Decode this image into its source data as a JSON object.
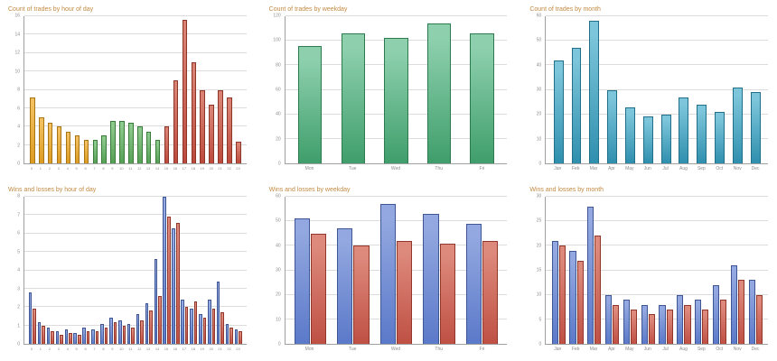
{
  "page": {
    "background": "#ffffff"
  },
  "chart_data": [
    {
      "id": "trades-by-hour",
      "type": "bar",
      "title": "Count of trades by hour of day",
      "categories": [
        "0",
        "1",
        "2",
        "3",
        "4",
        "5",
        "6",
        "7",
        "8",
        "9",
        "10",
        "11",
        "12",
        "13",
        "14",
        "15",
        "16",
        "17",
        "18",
        "19",
        "20",
        "21",
        "22",
        "23"
      ],
      "ylim": [
        0,
        16
      ],
      "ytick_step": 2,
      "grid": true,
      "legend": "none",
      "palette": {
        "orange": {
          "base": "#dd9b21",
          "light": "#f2c05e",
          "border": "#a87415"
        },
        "green": {
          "base": "#55a055",
          "light": "#8cc98c",
          "border": "#3c7a3c"
        },
        "red": {
          "base": "#bc4a3c",
          "light": "#d98273",
          "border": "#8e3529"
        }
      },
      "series": [
        {
          "name": "Trades",
          "values": [
            7.2,
            5,
            4.4,
            4,
            3.4,
            3,
            2.6,
            2.6,
            3,
            4.6,
            4.6,
            4.4,
            4,
            3.4,
            2.6,
            4,
            9,
            15.6,
            11,
            8,
            6.4,
            8,
            7.2,
            2.4
          ],
          "bar_colors": [
            "orange",
            "orange",
            "orange",
            "orange",
            "orange",
            "orange",
            "orange",
            "green",
            "green",
            "green",
            "green",
            "green",
            "green",
            "green",
            "green",
            "red",
            "red",
            "red",
            "red",
            "red",
            "red",
            "red",
            "red",
            "red"
          ]
        }
      ]
    },
    {
      "id": "trades-by-weekday",
      "type": "bar",
      "title": "Count of trades by weekday",
      "categories": [
        "Mon",
        "Tue",
        "Wed",
        "Thu",
        "Fri"
      ],
      "ylim": [
        0,
        120
      ],
      "ytick_step": 20,
      "grid": true,
      "legend": "none",
      "series": [
        {
          "name": "Trades",
          "values": [
            96,
            106,
            102,
            114,
            106
          ],
          "color": {
            "base": "#3f9e6b",
            "light": "#8ed0ae",
            "border": "#2d7a4f"
          }
        }
      ]
    },
    {
      "id": "trades-by-month",
      "type": "bar",
      "title": "Count of trades by month",
      "categories": [
        "Jan",
        "Feb",
        "Mar",
        "Apr",
        "May",
        "Jun",
        "Jul",
        "Aug",
        "Sep",
        "Oct",
        "Nov",
        "Dec"
      ],
      "ylim": [
        0,
        60
      ],
      "ytick_step": 10,
      "grid": true,
      "legend": "none",
      "series": [
        {
          "name": "Trades",
          "values": [
            42,
            47,
            58,
            30,
            23,
            19,
            20,
            27,
            24,
            21,
            31,
            29
          ],
          "color": {
            "base": "#2f8fae",
            "light": "#7cc5da",
            "border": "#20708a"
          }
        }
      ]
    },
    {
      "id": "wins-losses-by-hour",
      "type": "bar",
      "title": "Wins and losses by hour of day",
      "categories": [
        "0",
        "1",
        "2",
        "3",
        "4",
        "5",
        "6",
        "7",
        "8",
        "9",
        "10",
        "11",
        "12",
        "13",
        "14",
        "15",
        "16",
        "17",
        "18",
        "19",
        "20",
        "21",
        "22",
        "23"
      ],
      "ylim": [
        0,
        8
      ],
      "ytick_step": 1,
      "grid": true,
      "legend": "none",
      "series": [
        {
          "name": "Wins",
          "values": [
            2.8,
            1.2,
            0.9,
            0.7,
            0.8,
            0.6,
            0.9,
            0.8,
            1.1,
            1.4,
            1.3,
            1.1,
            1.6,
            2.2,
            4.6,
            8,
            6.3,
            2.4,
            1.9,
            1.6,
            2.4,
            3.4,
            1.1,
            0.8
          ],
          "color": {
            "base": "#5b79c9",
            "light": "#93a8e0",
            "border": "#3f5694"
          }
        },
        {
          "name": "Losses",
          "values": [
            1.9,
            1,
            0.7,
            0.5,
            0.6,
            0.5,
            0.7,
            0.7,
            0.9,
            1.2,
            1,
            0.9,
            1.3,
            1.8,
            2.6,
            6.9,
            6.6,
            2,
            2.3,
            1.4,
            1.9,
            1.7,
            0.9,
            0.7
          ],
          "color": {
            "base": "#bf5044",
            "light": "#dd8a7c",
            "border": "#93372c"
          }
        }
      ]
    },
    {
      "id": "wins-losses-by-weekday",
      "type": "bar",
      "title": "Wins and losses by weekday",
      "categories": [
        "Mon",
        "Tue",
        "Wed",
        "Thu",
        "Fri"
      ],
      "ylim": [
        0,
        60
      ],
      "ytick_step": 10,
      "grid": true,
      "legend": "none",
      "series": [
        {
          "name": "Wins",
          "values": [
            51,
            47,
            57,
            53,
            49
          ],
          "color": {
            "base": "#5b79c9",
            "light": "#93a8e0",
            "border": "#3f5694"
          }
        },
        {
          "name": "Losses",
          "values": [
            45,
            40,
            42,
            41,
            42
          ],
          "color": {
            "base": "#bf5044",
            "light": "#dd8a7c",
            "border": "#93372c"
          }
        }
      ]
    },
    {
      "id": "wins-losses-by-month",
      "type": "bar",
      "title": "Wins and losses by month",
      "categories": [
        "Jan",
        "Feb",
        "Mar",
        "Apr",
        "May",
        "Jun",
        "Jul",
        "Aug",
        "Sep",
        "Oct",
        "Nov",
        "Dec"
      ],
      "ylim": [
        0,
        30
      ],
      "ytick_step": 5,
      "grid": true,
      "legend": "none",
      "series": [
        {
          "name": "Wins",
          "values": [
            21,
            19,
            28,
            10,
            9,
            8,
            8,
            10,
            9,
            12,
            16,
            13
          ],
          "color": {
            "base": "#5b79c9",
            "light": "#93a8e0",
            "border": "#3f5694"
          }
        },
        {
          "name": "Losses",
          "values": [
            20,
            17,
            22,
            8,
            7,
            6,
            7,
            8,
            7,
            9,
            13,
            10
          ],
          "color": {
            "base": "#bf5044",
            "light": "#dd8a7c",
            "border": "#93372c"
          }
        }
      ]
    }
  ]
}
